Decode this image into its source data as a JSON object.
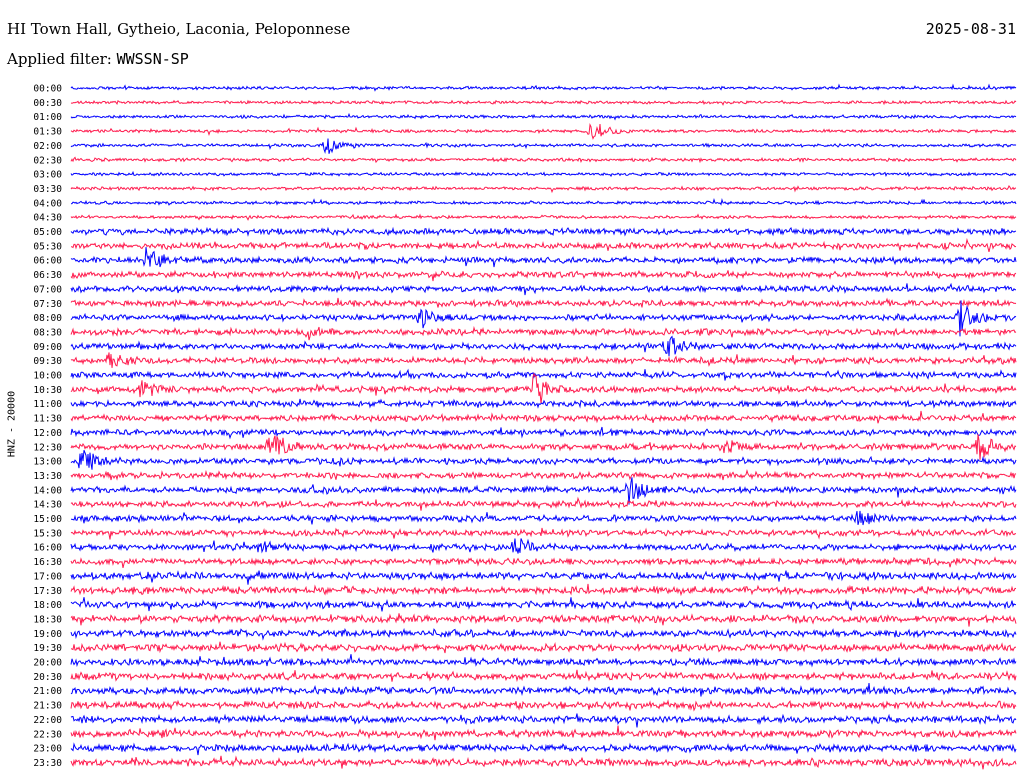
{
  "header": {
    "station": "HI Town Hall, Gytheio, Laconia, Peloponnese",
    "date": "2025-08-31",
    "filter_label": "Applied filter:",
    "filter_value": "WWSSN-SP"
  },
  "channel_label": "HNZ - 20000",
  "colors": {
    "odd_trace": "#0000ff",
    "even_trace": "#ff1a4d",
    "background": "#ffffff"
  },
  "chart_data": {
    "type": "line",
    "y_tick_labels": [
      "00:00",
      "00:30",
      "01:00",
      "01:30",
      "02:00",
      "02:30",
      "03:00",
      "03:30",
      "04:00",
      "04:30",
      "05:00",
      "05:30",
      "06:00",
      "06:30",
      "07:00",
      "07:30",
      "08:00",
      "08:30",
      "09:00",
      "09:30",
      "10:00",
      "10:30",
      "11:00",
      "11:30",
      "12:00",
      "12:30",
      "13:00",
      "13:30",
      "14:00",
      "14:30",
      "15:00",
      "15:30",
      "16:00",
      "16:30",
      "17:00",
      "17:30",
      "18:00",
      "18:30",
      "19:00",
      "19:30",
      "20:00",
      "20:30",
      "21:00",
      "21:30",
      "22:00",
      "22:30",
      "23:00",
      "23:30"
    ],
    "ylabel": "HNZ - 20000",
    "grid": false,
    "events": [
      {
        "row": "01:30",
        "x": 0.55,
        "amp": 12
      },
      {
        "row": "02:00",
        "x": 0.27,
        "amp": 9
      },
      {
        "row": "06:00",
        "x": 0.08,
        "amp": 13
      },
      {
        "row": "08:00",
        "x": 0.37,
        "amp": 9
      },
      {
        "row": "08:00",
        "x": 0.94,
        "amp": 18
      },
      {
        "row": "08:30",
        "x": 0.25,
        "amp": 8
      },
      {
        "row": "09:00",
        "x": 0.63,
        "amp": 13
      },
      {
        "row": "09:30",
        "x": 0.04,
        "amp": 8
      },
      {
        "row": "10:30",
        "x": 0.07,
        "amp": 13
      },
      {
        "row": "10:30",
        "x": 0.49,
        "amp": 17
      },
      {
        "row": "12:30",
        "x": 0.21,
        "amp": 15
      },
      {
        "row": "12:30",
        "x": 0.69,
        "amp": 8
      },
      {
        "row": "12:30",
        "x": 0.96,
        "amp": 14
      },
      {
        "row": "13:00",
        "x": 0.01,
        "amp": 14
      },
      {
        "row": "14:00",
        "x": 0.59,
        "amp": 14
      },
      {
        "row": "15:00",
        "x": 0.83,
        "amp": 10
      },
      {
        "row": "16:00",
        "x": 0.2,
        "amp": 7
      },
      {
        "row": "16:00",
        "x": 0.47,
        "amp": 12
      }
    ]
  }
}
